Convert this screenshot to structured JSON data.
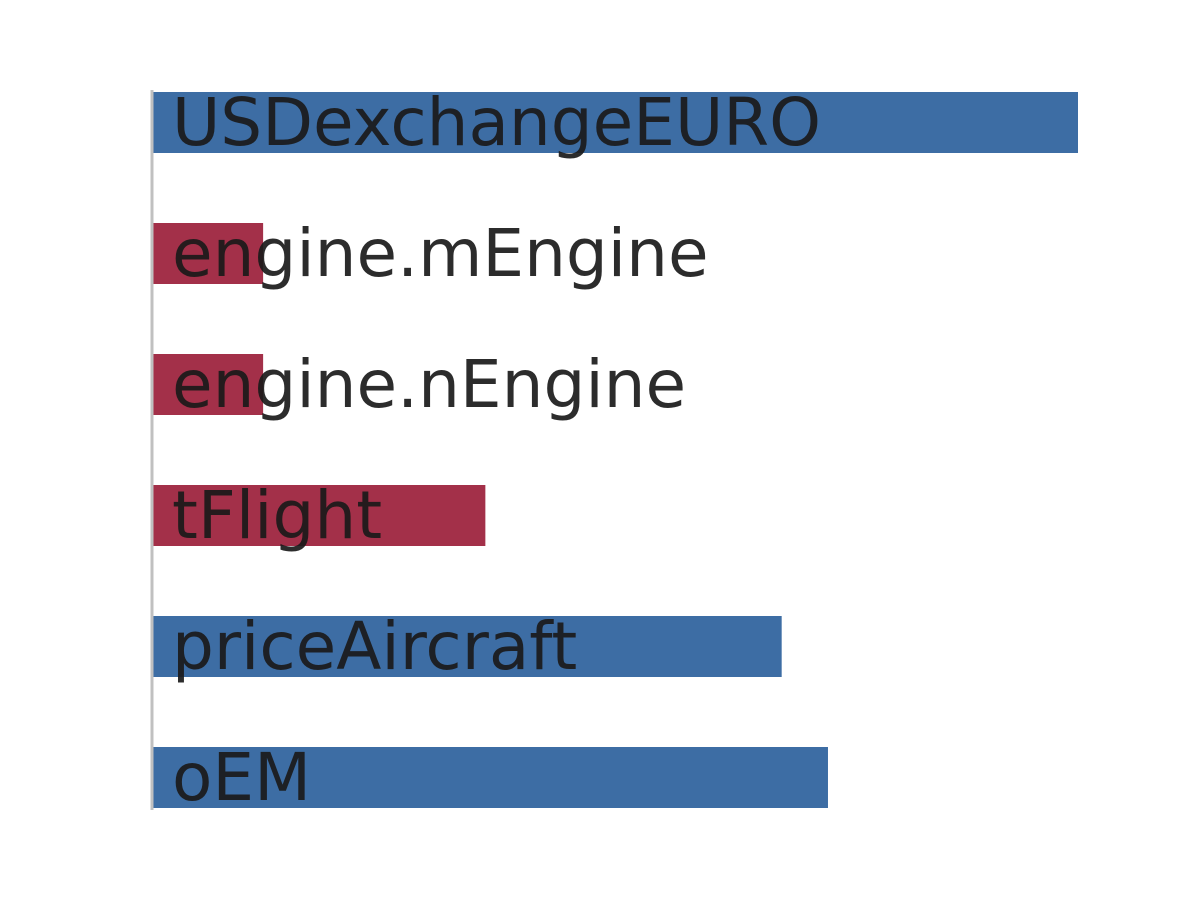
{
  "chart_data": {
    "type": "bar",
    "orientation": "horizontal",
    "categories": [
      "USDexchangeEURO",
      "engine.mEngine",
      "engine.nEngine",
      "tFlight",
      "priceAircraft",
      "oEM"
    ],
    "values": [
      1.0,
      -0.12,
      -0.12,
      -0.36,
      0.68,
      0.73
    ],
    "xlim": [
      -1.0,
      1.0
    ],
    "grid": false,
    "positive_color": "#3d6da4",
    "negative_color": "#a33049",
    "axis_color": "#c0c0c0"
  }
}
